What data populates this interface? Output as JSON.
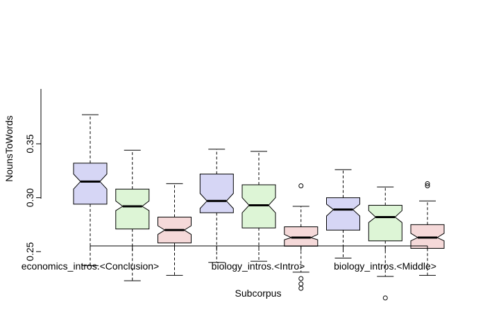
{
  "chart_data": {
    "type": "boxplot",
    "title": "",
    "xlabel": "Subcorpus",
    "ylabel": "NounsToWords",
    "ylim": [
      0.2,
      0.39
    ],
    "yticks": [
      0.25,
      0.3,
      0.35
    ],
    "ytick_labels": [
      "0.25",
      "0.30",
      "0.35"
    ],
    "xtick_labels_shown": [
      "economics_intros.<Conclusion>",
      "biology_intros.<Intro>",
      "biology_intros.<Middle>"
    ],
    "notched": true,
    "colors": [
      "#d6d6f5",
      "#ddf5d6",
      "#f5d9d9"
    ],
    "boxes": [
      {
        "whisker_low": 0.237,
        "q1": 0.294,
        "median": 0.315,
        "q3": 0.332,
        "whisker_high": 0.377,
        "notch_low": 0.308,
        "notch_high": 0.322,
        "outliers": []
      },
      {
        "whisker_low": 0.223,
        "q1": 0.271,
        "median": 0.292,
        "q3": 0.308,
        "whisker_high": 0.344,
        "notch_low": 0.288,
        "notch_high": 0.297,
        "outliers": []
      },
      {
        "whisker_low": 0.228,
        "q1": 0.258,
        "median": 0.27,
        "q3": 0.282,
        "whisker_high": 0.313,
        "notch_low": 0.266,
        "notch_high": 0.274,
        "outliers": []
      },
      {
        "whisker_low": 0.24,
        "q1": 0.286,
        "median": 0.297,
        "q3": 0.322,
        "whisker_high": 0.345,
        "notch_low": 0.29,
        "notch_high": 0.304,
        "outliers": []
      },
      {
        "whisker_low": 0.241,
        "q1": 0.272,
        "median": 0.293,
        "q3": 0.312,
        "whisker_high": 0.343,
        "notch_low": 0.286,
        "notch_high": 0.3,
        "outliers": []
      },
      {
        "whisker_low": 0.231,
        "q1": 0.255,
        "median": 0.263,
        "q3": 0.273,
        "whisker_high": 0.292,
        "notch_low": 0.261,
        "notch_high": 0.266,
        "outliers": [
          0.311,
          0.225,
          0.22,
          0.216
        ]
      },
      {
        "whisker_low": 0.244,
        "q1": 0.27,
        "median": 0.289,
        "q3": 0.3,
        "whisker_high": 0.326,
        "notch_low": 0.283,
        "notch_high": 0.294,
        "outliers": []
      },
      {
        "whisker_low": 0.227,
        "q1": 0.26,
        "median": 0.282,
        "q3": 0.293,
        "whisker_high": 0.31,
        "notch_low": 0.277,
        "notch_high": 0.288,
        "outliers": [
          0.207
        ]
      },
      {
        "whisker_low": 0.228,
        "q1": 0.253,
        "median": 0.263,
        "q3": 0.275,
        "whisker_high": 0.297,
        "notch_low": 0.26,
        "notch_high": 0.267,
        "outliers": [
          0.313,
          0.311
        ]
      }
    ]
  }
}
